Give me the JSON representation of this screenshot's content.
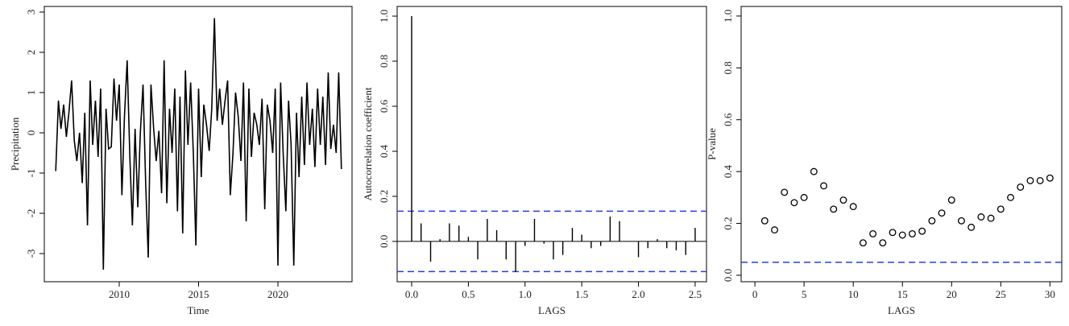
{
  "chart_data": [
    {
      "type": "line",
      "xlabel": "Time",
      "ylabel": "Precipitation",
      "color": "#000000",
      "x": [
        2006,
        2006.17,
        2006.33,
        2006.5,
        2006.67,
        2006.83,
        2007,
        2007.17,
        2007.33,
        2007.5,
        2007.67,
        2007.83,
        2008,
        2008.17,
        2008.33,
        2008.5,
        2008.67,
        2008.83,
        2009,
        2009.17,
        2009.33,
        2009.5,
        2009.67,
        2009.83,
        2010,
        2010.17,
        2010.33,
        2010.5,
        2010.67,
        2010.83,
        2011,
        2011.17,
        2011.33,
        2011.5,
        2011.67,
        2011.83,
        2012,
        2012.17,
        2012.33,
        2012.5,
        2012.67,
        2012.83,
        2013,
        2013.17,
        2013.33,
        2013.5,
        2013.67,
        2013.83,
        2014,
        2014.17,
        2014.33,
        2014.5,
        2014.67,
        2014.83,
        2015,
        2015.17,
        2015.33,
        2015.5,
        2015.67,
        2015.83,
        2016,
        2016.17,
        2016.33,
        2016.5,
        2016.67,
        2016.83,
        2017,
        2017.17,
        2017.33,
        2017.5,
        2017.67,
        2017.83,
        2018,
        2018.17,
        2018.33,
        2018.5,
        2018.67,
        2018.83,
        2019,
        2019.17,
        2019.33,
        2019.5,
        2019.67,
        2019.83,
        2020,
        2020.17,
        2020.33,
        2020.5,
        2020.67,
        2020.83,
        2021,
        2021.17,
        2021.33,
        2021.5,
        2021.67,
        2021.83,
        2022,
        2022.17,
        2022.33,
        2022.5,
        2022.67,
        2022.83,
        2023,
        2023.17,
        2023.33,
        2023.5,
        2023.67,
        2023.83,
        2024
      ],
      "values": [
        -0.95,
        0.8,
        0.1,
        0.7,
        -0.1,
        0.5,
        1.3,
        -0.2,
        -0.7,
        0.0,
        -1.25,
        0.5,
        -2.3,
        1.3,
        -0.3,
        0.8,
        -0.6,
        1.1,
        -3.4,
        0.6,
        -0.4,
        -0.35,
        1.35,
        0.3,
        1.2,
        -1.55,
        0.4,
        1.8,
        -0.6,
        -2.3,
        0.1,
        -1.85,
        0.0,
        1.2,
        -1.3,
        -3.1,
        1.2,
        0.1,
        -0.7,
        0.05,
        -1.5,
        1.8,
        -1.75,
        0.6,
        -0.5,
        1.1,
        -1.95,
        0.9,
        -2.5,
        1.55,
        -0.3,
        1.25,
        -0.5,
        -2.8,
        1.1,
        -1.1,
        0.7,
        0.2,
        -0.45,
        0.6,
        2.85,
        0.3,
        1.1,
        0.2,
        0.8,
        1.3,
        -1.55,
        -0.5,
        1.0,
        0.4,
        -0.7,
        1.25,
        -2.2,
        1.1,
        -0.6,
        0.5,
        0.2,
        -0.3,
        0.85,
        -1.9,
        0.7,
        0.3,
        -0.5,
        1.1,
        -3.3,
        1.25,
        -0.5,
        -1.95,
        0.8,
        -0.3,
        -3.3,
        0.5,
        -1.1,
        0.9,
        -0.8,
        1.25,
        -0.3,
        0.6,
        -0.85,
        1.1,
        -0.3,
        0.9,
        -0.8,
        1.5,
        -0.4,
        0.2,
        -0.5,
        1.5,
        -0.9
      ],
      "xlim": [
        2005.28,
        2024.67
      ],
      "xticks": [
        2010,
        2015,
        2020
      ],
      "ylim": [
        -3.7,
        3.14
      ],
      "yticks": [
        -3,
        -2,
        -1,
        0,
        1,
        2,
        3
      ]
    },
    {
      "type": "stem",
      "xlabel": "LAGS",
      "ylabel": "Autocorrelation coefficient",
      "color": "#000000",
      "x": [
        0,
        0.083,
        0.167,
        0.25,
        0.333,
        0.417,
        0.5,
        0.583,
        0.667,
        0.75,
        0.833,
        0.917,
        1,
        1.083,
        1.167,
        1.25,
        1.333,
        1.417,
        1.5,
        1.583,
        1.667,
        1.75,
        1.833,
        1.917,
        2,
        2.083,
        2.167,
        2.25,
        2.333,
        2.417,
        2.5
      ],
      "values": [
        1.0,
        0.08,
        -0.09,
        0.01,
        0.08,
        0.07,
        0.02,
        -0.08,
        0.1,
        0.05,
        -0.08,
        -0.135,
        -0.02,
        0.1,
        -0.01,
        -0.08,
        -0.06,
        0.06,
        0.03,
        -0.03,
        -0.02,
        0.11,
        0.09,
        0.0,
        -0.07,
        -0.03,
        0.01,
        -0.03,
        -0.04,
        -0.06,
        0.06
      ],
      "reference_lines": [
        {
          "value": 0.134,
          "color": "#2440e0"
        },
        {
          "value": -0.134,
          "color": "#2440e0"
        }
      ],
      "xlim": [
        -0.128,
        2.6
      ],
      "xticks": [
        {
          "value": 0,
          "label": "0.0"
        },
        0.5,
        {
          "value": 1,
          "label": "1.0"
        },
        1.5,
        {
          "value": 2,
          "label": "2.0"
        },
        2.5
      ],
      "ylim": [
        -0.179,
        1.043
      ],
      "yticks": [
        {
          "value": 0,
          "label": "0.0"
        },
        0.2,
        0.4,
        0.6,
        0.8,
        {
          "value": 1,
          "label": "1.0"
        }
      ]
    },
    {
      "type": "scatter",
      "xlabel": "LAGS",
      "ylabel": "P-value",
      "color": "#000000",
      "x": [
        1,
        2,
        3,
        4,
        5,
        6,
        7,
        8,
        9,
        10,
        11,
        12,
        13,
        14,
        15,
        16,
        17,
        18,
        19,
        20,
        21,
        22,
        23,
        24,
        25,
        26,
        27,
        28,
        29,
        30
      ],
      "values": [
        0.21,
        0.175,
        0.32,
        0.28,
        0.3,
        0.4,
        0.345,
        0.255,
        0.29,
        0.265,
        0.125,
        0.16,
        0.125,
        0.165,
        0.155,
        0.16,
        0.17,
        0.21,
        0.24,
        0.29,
        0.21,
        0.185,
        0.225,
        0.22,
        0.255,
        0.3,
        0.34,
        0.365,
        0.365,
        0.375
      ],
      "reference_lines": [
        {
          "value": 0.05,
          "color": "#2440e0"
        }
      ],
      "xlim": [
        -1.4,
        31.2
      ],
      "xticks": [
        0,
        5,
        10,
        15,
        20,
        25,
        30
      ],
      "ylim": [
        -0.025,
        1.037
      ],
      "yticks": [
        {
          "value": 0,
          "label": "0.0"
        },
        0.2,
        0.4,
        0.6,
        0.8,
        {
          "value": 1,
          "label": "1.0"
        }
      ]
    }
  ]
}
